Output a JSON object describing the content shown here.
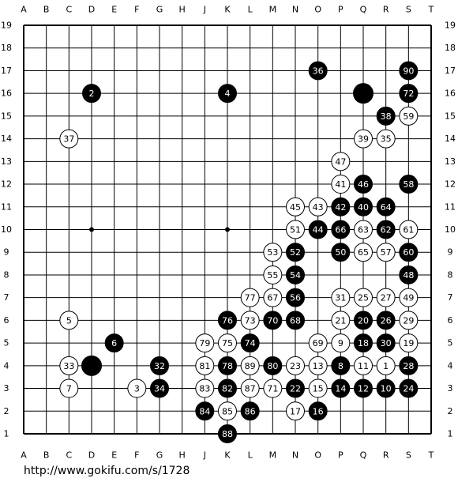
{
  "board": {
    "columns": [
      "A",
      "B",
      "C",
      "D",
      "E",
      "F",
      "G",
      "H",
      "J",
      "K",
      "L",
      "M",
      "N",
      "O",
      "P",
      "Q",
      "R",
      "S",
      "T"
    ],
    "rows": [
      19,
      18,
      17,
      16,
      15,
      14,
      13,
      12,
      11,
      10,
      9,
      8,
      7,
      6,
      5,
      4,
      3,
      2,
      1
    ],
    "star_points": [
      "D10",
      "K10"
    ],
    "stones": [
      {
        "point": "O17",
        "color": "black",
        "number": "36"
      },
      {
        "point": "S17",
        "color": "black",
        "number": "90"
      },
      {
        "point": "D16",
        "color": "black",
        "number": "2"
      },
      {
        "point": "K16",
        "color": "black",
        "number": "4"
      },
      {
        "point": "Q16",
        "color": "black"
      },
      {
        "point": "S16",
        "color": "black",
        "number": "72"
      },
      {
        "point": "R15",
        "color": "black",
        "number": "38"
      },
      {
        "point": "S15",
        "color": "white",
        "number": "59"
      },
      {
        "point": "C14",
        "color": "white",
        "number": "37"
      },
      {
        "point": "Q14",
        "color": "white",
        "number": "39"
      },
      {
        "point": "R14",
        "color": "white",
        "number": "35"
      },
      {
        "point": "P13",
        "color": "white",
        "number": "47"
      },
      {
        "point": "P12",
        "color": "white",
        "number": "41"
      },
      {
        "point": "Q12",
        "color": "black",
        "number": "46"
      },
      {
        "point": "S12",
        "color": "black",
        "number": "58"
      },
      {
        "point": "N11",
        "color": "white",
        "number": "45"
      },
      {
        "point": "O11",
        "color": "white",
        "number": "43"
      },
      {
        "point": "P11",
        "color": "black",
        "number": "42"
      },
      {
        "point": "Q11",
        "color": "black",
        "number": "40"
      },
      {
        "point": "R11",
        "color": "black",
        "number": "64"
      },
      {
        "point": "N10",
        "color": "white",
        "number": "51"
      },
      {
        "point": "O10",
        "color": "black",
        "number": "44"
      },
      {
        "point": "P10",
        "color": "black",
        "number": "66"
      },
      {
        "point": "Q10",
        "color": "white",
        "number": "63"
      },
      {
        "point": "R10",
        "color": "black",
        "number": "62"
      },
      {
        "point": "S10",
        "color": "white",
        "number": "61"
      },
      {
        "point": "M9",
        "color": "white",
        "number": "53"
      },
      {
        "point": "N9",
        "color": "black",
        "number": "52"
      },
      {
        "point": "P9",
        "color": "black",
        "number": "50"
      },
      {
        "point": "Q9",
        "color": "white",
        "number": "65"
      },
      {
        "point": "R9",
        "color": "white",
        "number": "57"
      },
      {
        "point": "S9",
        "color": "black",
        "number": "60"
      },
      {
        "point": "M8",
        "color": "white",
        "number": "55"
      },
      {
        "point": "N8",
        "color": "black",
        "number": "54"
      },
      {
        "point": "S8",
        "color": "black",
        "number": "48"
      },
      {
        "point": "L7",
        "color": "white",
        "number": "77"
      },
      {
        "point": "M7",
        "color": "white",
        "number": "67"
      },
      {
        "point": "N7",
        "color": "black",
        "number": "56"
      },
      {
        "point": "P7",
        "color": "white",
        "number": "31"
      },
      {
        "point": "Q7",
        "color": "white",
        "number": "25"
      },
      {
        "point": "R7",
        "color": "white",
        "number": "27"
      },
      {
        "point": "S7",
        "color": "white",
        "number": "49"
      },
      {
        "point": "C6",
        "color": "white",
        "number": "5"
      },
      {
        "point": "K6",
        "color": "black",
        "number": "76"
      },
      {
        "point": "L6",
        "color": "white",
        "number": "73"
      },
      {
        "point": "M6",
        "color": "black",
        "number": "70"
      },
      {
        "point": "N6",
        "color": "black",
        "number": "68"
      },
      {
        "point": "P6",
        "color": "white",
        "number": "21"
      },
      {
        "point": "Q6",
        "color": "black",
        "number": "20"
      },
      {
        "point": "R6",
        "color": "black",
        "number": "26"
      },
      {
        "point": "S6",
        "color": "white",
        "number": "29"
      },
      {
        "point": "E5",
        "color": "black",
        "number": "6"
      },
      {
        "point": "J5",
        "color": "white",
        "number": "79"
      },
      {
        "point": "K5",
        "color": "white",
        "number": "75"
      },
      {
        "point": "L5",
        "color": "black",
        "number": "74"
      },
      {
        "point": "O5",
        "color": "white",
        "number": "69"
      },
      {
        "point": "P5",
        "color": "white",
        "number": "9"
      },
      {
        "point": "Q5",
        "color": "black",
        "number": "18"
      },
      {
        "point": "R5",
        "color": "black",
        "number": "30"
      },
      {
        "point": "S5",
        "color": "white",
        "number": "19"
      },
      {
        "point": "C4",
        "color": "white",
        "number": "33"
      },
      {
        "point": "D4",
        "color": "black"
      },
      {
        "point": "G4",
        "color": "black",
        "number": "32"
      },
      {
        "point": "J4",
        "color": "white",
        "number": "81"
      },
      {
        "point": "K4",
        "color": "black",
        "number": "78"
      },
      {
        "point": "L4",
        "color": "white",
        "number": "89"
      },
      {
        "point": "M4",
        "color": "black",
        "number": "80"
      },
      {
        "point": "N4",
        "color": "white",
        "number": "23"
      },
      {
        "point": "O4",
        "color": "white",
        "number": "13"
      },
      {
        "point": "P4",
        "color": "black",
        "number": "8"
      },
      {
        "point": "Q4",
        "color": "white",
        "number": "11"
      },
      {
        "point": "R4",
        "color": "white",
        "number": "1"
      },
      {
        "point": "S4",
        "color": "black",
        "number": "28"
      },
      {
        "point": "C3",
        "color": "white",
        "number": "7"
      },
      {
        "point": "F3",
        "color": "white",
        "number": "3"
      },
      {
        "point": "G3",
        "color": "black",
        "number": "34"
      },
      {
        "point": "J3",
        "color": "white",
        "number": "83"
      },
      {
        "point": "K3",
        "color": "black",
        "number": "82"
      },
      {
        "point": "L3",
        "color": "white",
        "number": "87"
      },
      {
        "point": "M3",
        "color": "white",
        "number": "71"
      },
      {
        "point": "N3",
        "color": "black",
        "number": "22"
      },
      {
        "point": "O3",
        "color": "white",
        "number": "15"
      },
      {
        "point": "P3",
        "color": "black",
        "number": "14"
      },
      {
        "point": "Q3",
        "color": "black",
        "number": "12"
      },
      {
        "point": "R3",
        "color": "black",
        "number": "10"
      },
      {
        "point": "S3",
        "color": "black",
        "number": "24"
      },
      {
        "point": "J2",
        "color": "black",
        "number": "84"
      },
      {
        "point": "K2",
        "color": "white",
        "number": "85"
      },
      {
        "point": "L2",
        "color": "black",
        "number": "86"
      },
      {
        "point": "N2",
        "color": "white",
        "number": "17"
      },
      {
        "point": "O2",
        "color": "black",
        "number": "16"
      },
      {
        "point": "K1",
        "color": "black",
        "number": "88"
      }
    ]
  },
  "footer": {
    "url": "http://www.gokifu.com/s/1728"
  }
}
